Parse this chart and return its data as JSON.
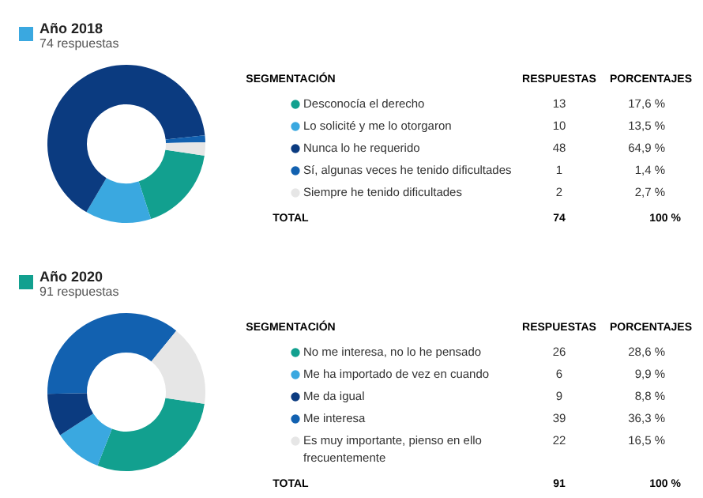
{
  "chart_data": [
    {
      "type": "donut",
      "title": "Año 2018",
      "subtitle": "74 respuestas",
      "categories": [
        "Desconocía el derecho",
        "Lo solicité y me lo otorgaron",
        "Nunca lo he requerido",
        "Sí, algunas veces he tenido dificultades",
        "Siempre he tenido dificultades"
      ],
      "values": [
        17.6,
        13.5,
        64.9,
        1.4,
        2.7
      ],
      "value_labels": [
        "17,6 %",
        "13,5 %",
        "64,9 %",
        "1,4 %",
        "2,7 %"
      ],
      "colors": [
        "#12a08f",
        "#3aa8e0",
        "#0b3b80",
        "#1261b0",
        "#e6e6e6"
      ],
      "legend": "right",
      "annotations": [
        "SEGMENTACIÓN",
        "RESPUESTAS",
        "PORCENTAJES",
        "13",
        "10",
        "48",
        "1",
        "2",
        "TOTAL",
        "74",
        "100 %"
      ]
    },
    {
      "type": "donut",
      "title": "Año 2020",
      "subtitle": "91 respuestas",
      "categories": [
        "No me interesa, no lo he pensado",
        "Me ha importado de vez en cuando",
        "Me da igual",
        "Me interesa",
        "Es muy importante, pienso en ello frecuentemente"
      ],
      "values": [
        28.6,
        9.9,
        8.8,
        36.3,
        16.5
      ],
      "value_labels": [
        "28,6 %",
        "9,9 %",
        "8,8 %",
        "36,3 %",
        "16,5 %"
      ],
      "colors": [
        "#12a08f",
        "#3aa8e0",
        "#0b3b80",
        "#1261b0",
        "#e6e6e6"
      ],
      "legend": "right",
      "annotations": [
        "SEGMENTACIÓN",
        "RESPUESTAS",
        "PORCENTAJES",
        "26",
        "6",
        "9",
        "39",
        "22",
        "TOTAL",
        "91",
        "100 %"
      ]
    }
  ]
}
